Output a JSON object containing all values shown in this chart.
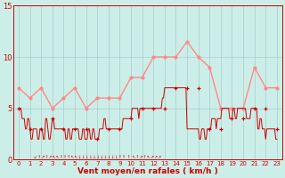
{
  "xlabel": "Vent moyen/en rafales ( km/h )",
  "background_color": "#cceee8",
  "grid_color": "#aacccc",
  "xlim": [
    -0.5,
    23.5
  ],
  "ylim": [
    0,
    15
  ],
  "yticks": [
    0,
    5,
    10,
    15
  ],
  "xticks": [
    0,
    1,
    2,
    3,
    4,
    5,
    6,
    7,
    8,
    9,
    10,
    11,
    12,
    13,
    14,
    15,
    16,
    17,
    18,
    19,
    20,
    21,
    22,
    23
  ],
  "mean_color": "#cc0000",
  "gust_color": "#ff8888",
  "gust_x": [
    0,
    1,
    2,
    3,
    4,
    5,
    6,
    7,
    8,
    9,
    10,
    11,
    12,
    13,
    14,
    15,
    16,
    17,
    18,
    19,
    20,
    21,
    22,
    23
  ],
  "gust_y": [
    7,
    6,
    7,
    5,
    6,
    7,
    5,
    6,
    6,
    6,
    8,
    8,
    10,
    10,
    10,
    11.5,
    10,
    9,
    5,
    5,
    5,
    9,
    7,
    7
  ],
  "mean_x": [
    0,
    1,
    2,
    3,
    4,
    5,
    6,
    7,
    8,
    9,
    10,
    11,
    12,
    13,
    14,
    15,
    16,
    17,
    18,
    19,
    20,
    21,
    22,
    23
  ],
  "mean_y": [
    5,
    3,
    3,
    4,
    3,
    3,
    3,
    2,
    3,
    3,
    4,
    5,
    5,
    5,
    7,
    7,
    7,
    3,
    3,
    4,
    4,
    5,
    5,
    3
  ],
  "detail_x": [
    0,
    0.1,
    0.2,
    0.3,
    0.4,
    0.5,
    0.6,
    0.7,
    0.8,
    0.9,
    1.0,
    1.1,
    1.2,
    1.3,
    1.4,
    1.5,
    1.6,
    1.7,
    1.8,
    1.9,
    2.0,
    2.1,
    2.2,
    2.3,
    2.4,
    2.5,
    2.6,
    2.7,
    2.8,
    2.9,
    3.0,
    3.1,
    3.2,
    3.3,
    3.4,
    3.5,
    3.6,
    3.7,
    3.8,
    3.9,
    4.0,
    4.1,
    4.2,
    4.3,
    4.4,
    4.5,
    4.6,
    4.7,
    4.8,
    4.9,
    5.0,
    5.1,
    5.2,
    5.3,
    5.4,
    5.5,
    5.6,
    5.7,
    5.8,
    5.9,
    6.0,
    6.1,
    6.2,
    6.3,
    6.4,
    6.5,
    6.6,
    6.7,
    6.8,
    6.9,
    7.0,
    7.1,
    7.2,
    7.3,
    7.4,
    7.5,
    7.6,
    7.7,
    7.8,
    7.9,
    8.0,
    8.1,
    8.2,
    8.3,
    8.4,
    8.5,
    8.6,
    8.7,
    8.8,
    8.9,
    9.0,
    9.1,
    9.2,
    9.3,
    9.4,
    9.5,
    9.6,
    9.7,
    9.8,
    9.9,
    10.0,
    10.1,
    10.2,
    10.3,
    10.4,
    10.5,
    10.6,
    10.7,
    10.8,
    10.9,
    11.0,
    11.1,
    11.2,
    11.3,
    11.4,
    11.5,
    11.6,
    11.7,
    11.8,
    11.9,
    12.0,
    12.1,
    12.2,
    12.3,
    12.4,
    12.5,
    12.6,
    12.7,
    12.8,
    12.9,
    13.0,
    13.1,
    13.2,
    13.3,
    13.4,
    13.5,
    13.6,
    13.7,
    13.8,
    13.9,
    14.0,
    14.1,
    14.2,
    14.3,
    14.4,
    14.5,
    14.6,
    14.7,
    14.8,
    14.9,
    15.0,
    15.1,
    15.2,
    15.3,
    15.4,
    15.5,
    15.6,
    15.7,
    15.8,
    15.9,
    16.0,
    16.1,
    16.2,
    16.3,
    16.4,
    16.5,
    16.6,
    16.7,
    16.8,
    16.9,
    17.0,
    17.1,
    17.2,
    17.3,
    17.4,
    17.5,
    17.6,
    17.7,
    17.8,
    17.9,
    18.0,
    18.1,
    18.2,
    18.3,
    18.4,
    18.5,
    18.6,
    18.7,
    18.8,
    18.9,
    19.0,
    19.1,
    19.2,
    19.3,
    19.4,
    19.5,
    19.6,
    19.7,
    19.8,
    19.9,
    20.0,
    20.1,
    20.2,
    20.3,
    20.4,
    20.5,
    20.6,
    20.7,
    20.8,
    20.9,
    21.0,
    21.1,
    21.2,
    21.3,
    21.4,
    21.5,
    21.6,
    21.7,
    21.8,
    21.9,
    22.0,
    22.1,
    22.2,
    22.3,
    22.4,
    22.5,
    22.6,
    22.7,
    22.8,
    22.9,
    23.0
  ],
  "detail_y": [
    5,
    5,
    5,
    4,
    4,
    4,
    3,
    3,
    4,
    4,
    3,
    2,
    2,
    3,
    3,
    3,
    3,
    2,
    2,
    3,
    3,
    3,
    2,
    2,
    4,
    4,
    3,
    2,
    2,
    3,
    4,
    4,
    3,
    3,
    3,
    3,
    3,
    3,
    3,
    3,
    3,
    3,
    2,
    2,
    3,
    3,
    2,
    2,
    3,
    3,
    3,
    3,
    3,
    3,
    2,
    2,
    2,
    3,
    3,
    2,
    2,
    2,
    3,
    3,
    2,
    2,
    3,
    3,
    2,
    2,
    2,
    2,
    3,
    3,
    3,
    3,
    4,
    4,
    3,
    3,
    3,
    3,
    3,
    3,
    3,
    3,
    3,
    3,
    3,
    3,
    3,
    3,
    3,
    4,
    4,
    4,
    4,
    4,
    4,
    4,
    4,
    5,
    5,
    5,
    5,
    5,
    5,
    4,
    5,
    5,
    5,
    5,
    5,
    5,
    5,
    5,
    5,
    5,
    5,
    5,
    5,
    5,
    5,
    5,
    5,
    5,
    5,
    5,
    6,
    6,
    7,
    7,
    7,
    7,
    7,
    7,
    7,
    7,
    7,
    7,
    7,
    7,
    7,
    7,
    7,
    7,
    7,
    7,
    7,
    7,
    3,
    3,
    3,
    3,
    3,
    3,
    3,
    3,
    3,
    3,
    3,
    2,
    2,
    3,
    3,
    3,
    2,
    2,
    3,
    3,
    3,
    3,
    4,
    4,
    4,
    4,
    3,
    4,
    4,
    4,
    4,
    5,
    5,
    5,
    5,
    5,
    5,
    5,
    4,
    4,
    4,
    5,
    5,
    4,
    4,
    5,
    5,
    5,
    5,
    5,
    5,
    5,
    5,
    4,
    4,
    4,
    4,
    5,
    5,
    5,
    5,
    5,
    5,
    3,
    3,
    4,
    4,
    3,
    3,
    3,
    2,
    3,
    3,
    3,
    3,
    3,
    3,
    3,
    3,
    2,
    2
  ]
}
